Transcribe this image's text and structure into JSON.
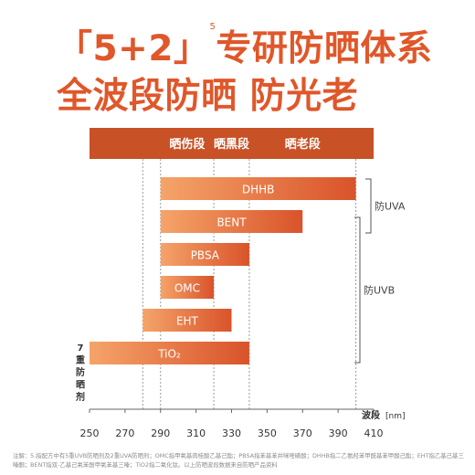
{
  "title": {
    "line1_prefix": "「5+2」",
    "line1_sup": "5",
    "line1_main": "专研防晒体系",
    "line2": "全波段防晒  防光老"
  },
  "colors": {
    "accent": "#e0572a",
    "header_band": "#c85126",
    "bar_start": "#f5a46a",
    "bar_end": "#d9532a"
  },
  "chart_data": {
    "type": "bar",
    "orientation": "horizontal-range",
    "xlabel": "波段",
    "xunit": "[nm]",
    "xlim": [
      250,
      410
    ],
    "xticks": [
      250,
      270,
      290,
      310,
      330,
      350,
      370,
      390,
      410
    ],
    "reference_lines": [
      280,
      290,
      320,
      340,
      400
    ],
    "header": {
      "bands": [
        {
          "label": "晒伤段",
          "from": 290,
          "to": 320
        },
        {
          "label": "晒黑段",
          "from": 320,
          "to": 340
        },
        {
          "label": "晒老段",
          "from": 340,
          "to": 400
        }
      ]
    },
    "series": [
      {
        "label": "DHHB",
        "start": 290,
        "end": 400
      },
      {
        "label": "BENT",
        "start": 290,
        "end": 370
      },
      {
        "label": "PBSA",
        "start": 290,
        "end": 340
      },
      {
        "label": "OMC",
        "start": 290,
        "end": 320
      },
      {
        "label": "EHT",
        "start": 280,
        "end": 330
      },
      {
        "label": "TiO₂",
        "start": 250,
        "end": 340
      }
    ],
    "groups": [
      {
        "label": "防UVA",
        "bars": [
          0,
          1
        ]
      },
      {
        "label": "防UVB",
        "bars": [
          1,
          5
        ]
      }
    ],
    "side_label": "7重防晒剂"
  },
  "footnote": "注解：5.指配方中有5重UVB防晒剂及2重UVA防晒剂；OMC指甲氧基肉桂酸乙基己酯；PBSA指苯基苯并咪唑磺酸；DHHB指二乙氨羟苯甲酰基苯甲酸己酯；EHT指乙基己基三嗪酮；BENT指双-乙基己氧苯酚甲氧苯基三嗪；TiO2指二氧化钛。以上防晒波段数据来自防晒产品资料"
}
